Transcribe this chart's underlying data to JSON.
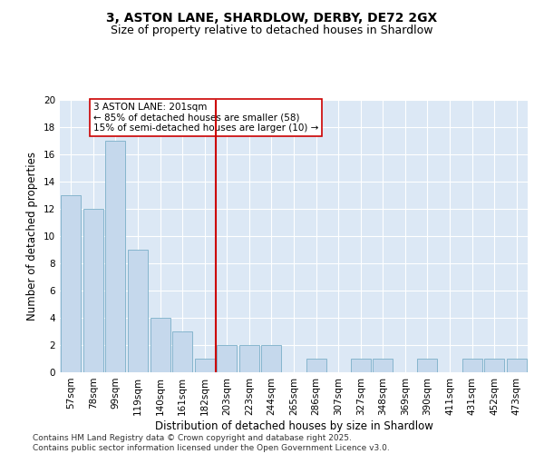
{
  "title": "3, ASTON LANE, SHARDLOW, DERBY, DE72 2GX",
  "subtitle": "Size of property relative to detached houses in Shardlow",
  "xlabel": "Distribution of detached houses by size in Shardlow",
  "ylabel": "Number of detached properties",
  "categories": [
    "57sqm",
    "78sqm",
    "99sqm",
    "119sqm",
    "140sqm",
    "161sqm",
    "182sqm",
    "203sqm",
    "223sqm",
    "244sqm",
    "265sqm",
    "286sqm",
    "307sqm",
    "327sqm",
    "348sqm",
    "369sqm",
    "390sqm",
    "411sqm",
    "431sqm",
    "452sqm",
    "473sqm"
  ],
  "values": [
    13,
    12,
    17,
    9,
    4,
    3,
    1,
    2,
    2,
    2,
    0,
    1,
    0,
    1,
    1,
    0,
    1,
    0,
    1,
    1,
    1
  ],
  "bar_color": "#c5d8ec",
  "bar_edgecolor": "#7aafc8",
  "vline_color": "#cc0000",
  "vline_pos": 7.5,
  "annotation_text": "3 ASTON LANE: 201sqm\n← 85% of detached houses are smaller (58)\n15% of semi-detached houses are larger (10) →",
  "annotation_box_color": "#ffffff",
  "annotation_box_edgecolor": "#cc0000",
  "ylim": [
    0,
    20
  ],
  "yticks": [
    0,
    2,
    4,
    6,
    8,
    10,
    12,
    14,
    16,
    18,
    20
  ],
  "background_color": "#dce8f5",
  "footer": "Contains HM Land Registry data © Crown copyright and database right 2025.\nContains public sector information licensed under the Open Government Licence v3.0.",
  "title_fontsize": 10,
  "subtitle_fontsize": 9,
  "xlabel_fontsize": 8.5,
  "ylabel_fontsize": 8.5,
  "tick_fontsize": 7.5,
  "footer_fontsize": 6.5,
  "annot_fontsize": 7.5
}
